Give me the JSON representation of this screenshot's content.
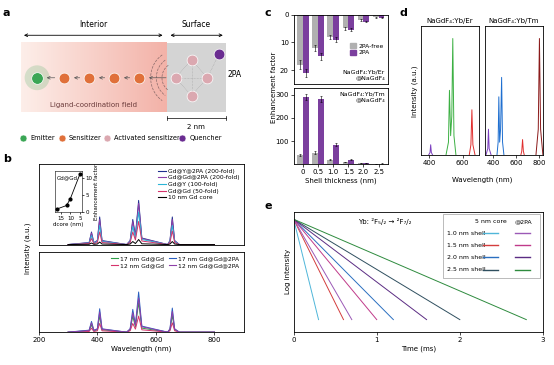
{
  "panel_labels": [
    "a",
    "b",
    "c",
    "d",
    "e"
  ],
  "diagram": {
    "regions": [
      "Interior",
      "Surface"
    ],
    "field_label": "Ligand-coordination field",
    "distance_label": "2 nm",
    "ligand_label": "2PA",
    "legend": [
      {
        "name": "Emitter",
        "color": "#3aa655"
      },
      {
        "name": "Sensitizer",
        "color": "#e0703a"
      },
      {
        "name": "Activated sensitizer",
        "color": "#dba8b0"
      },
      {
        "name": "Quencher",
        "color": "#6a2c91"
      }
    ]
  },
  "chart_data": [
    {
      "type": "line",
      "x": [
        300,
        372,
        380,
        388,
        400,
        408,
        416,
        500,
        512,
        521,
        530,
        541,
        552,
        640,
        648,
        656,
        664,
        680,
        800
      ],
      "xlim": [
        200,
        900
      ],
      "ylim": [
        0,
        16
      ],
      "tick_labels": false,
      "legend": "upper right",
      "series": [
        {
          "name": "Gd@Y@2PA (200-fold)",
          "color": "#1f2f8f",
          "values": [
            0,
            0.4,
            2.5,
            0.4,
            0.8,
            5.5,
            0.8,
            0,
            0.8,
            5.0,
            1.8,
            8.8,
            1.3,
            0,
            0.8,
            5.5,
            0.8,
            0,
            0
          ]
        },
        {
          "name": "Gd@Gd@2PA (200-fold)",
          "color": "#8e3fa8",
          "values": [
            0,
            0.35,
            2.3,
            0.35,
            0.7,
            5.0,
            0.7,
            0,
            0.7,
            4.6,
            1.6,
            8.2,
            1.2,
            0,
            0.7,
            5.0,
            0.7,
            0,
            0
          ]
        },
        {
          "name": "Gd@Y (100-fold)",
          "color": "#2bb5d6",
          "values": [
            0,
            0.3,
            1.8,
            0.3,
            0.6,
            3.8,
            0.6,
            0,
            0.5,
            3.6,
            1.2,
            6.5,
            1.0,
            0,
            0.6,
            3.8,
            0.6,
            0,
            0
          ]
        },
        {
          "name": "Gd@Gd (50-fold)",
          "color": "#d6336c",
          "values": [
            0,
            0.2,
            1.2,
            0.2,
            0.4,
            2.5,
            0.4,
            0,
            0.4,
            2.5,
            0.9,
            4.6,
            0.7,
            0,
            0.4,
            2.7,
            0.4,
            0,
            0
          ]
        },
        {
          "name": "10 nm Gd core",
          "color": "#000000",
          "values": [
            0,
            0.05,
            0.3,
            0.05,
            0.1,
            0.5,
            0.1,
            0,
            0.1,
            0.6,
            0.2,
            1.0,
            0.15,
            0,
            0.1,
            0.6,
            0.1,
            0,
            0
          ]
        }
      ]
    },
    {
      "type": "line",
      "title": "Gd@Gd",
      "x": [
        17,
        12,
        10,
        5
      ],
      "values": [
        1,
        2,
        4,
        11
      ],
      "color": "#000000",
      "marker": "o",
      "x_label": "dcore (nm)",
      "y_label": "Enhancement factor",
      "xlim": [
        18,
        4
      ],
      "xticks": [
        15,
        10,
        5
      ],
      "ylim": [
        0,
        12
      ],
      "yticks": [
        0,
        5,
        10
      ]
    },
    {
      "type": "line",
      "x": [
        300,
        372,
        380,
        388,
        400,
        408,
        416,
        500,
        512,
        521,
        530,
        541,
        552,
        640,
        648,
        656,
        664,
        680,
        800
      ],
      "xlim": [
        200,
        900
      ],
      "xticks": [
        200,
        400,
        600,
        800
      ],
      "ylim": [
        0,
        12
      ],
      "tick_labels": "x",
      "legend": "upper right",
      "x_label": "Wavelength (nm)",
      "y_label": "Intensity (a.u.)",
      "series": [
        {
          "name": "17 nm Gd@Gd",
          "color": "#2e9e48",
          "values": [
            0,
            0.2,
            1.1,
            0.2,
            0.35,
            2.4,
            0.35,
            0,
            0.35,
            2.4,
            0.8,
            4.4,
            0.6,
            0,
            0.35,
            2.5,
            0.35,
            0,
            0
          ]
        },
        {
          "name": "12 nm Gd@Gd",
          "color": "#d6336c",
          "values": [
            0,
            0.1,
            0.6,
            0.1,
            0.2,
            1.3,
            0.2,
            0,
            0.2,
            1.3,
            0.45,
            2.4,
            0.35,
            0,
            0.2,
            1.4,
            0.2,
            0,
            0
          ]
        },
        {
          "name": "17 nm Gd@Gd@2PA",
          "color": "#2a5fc0",
          "values": [
            0,
            0.3,
            1.6,
            0.3,
            0.5,
            3.5,
            0.5,
            0,
            0.5,
            3.4,
            1.1,
            6.0,
            0.9,
            0,
            0.5,
            3.6,
            0.5,
            0,
            0
          ]
        },
        {
          "name": "12 nm Gd@Gd@2PA",
          "color": "#8e3fa8",
          "values": [
            0,
            0.25,
            1.4,
            0.25,
            0.45,
            3.0,
            0.45,
            0,
            0.45,
            2.9,
            1.0,
            5.1,
            0.8,
            0,
            0.45,
            3.1,
            0.45,
            0,
            0
          ]
        }
      ]
    },
    {
      "type": "bar",
      "categories": [
        "0",
        "0.5",
        "1.0",
        "1.5",
        "2.0",
        "2.5"
      ],
      "ylim": [
        25,
        0
      ],
      "yticks": [
        0,
        10,
        20
      ],
      "tick_labels": "y",
      "legend": "center right",
      "annotation": "NaGdF₄:Yb/Er\n@NaGdF₄",
      "series": [
        {
          "name": "2PA-free",
          "color": "#b0b0b0",
          "values": [
            18,
            12,
            8,
            5,
            2,
            1
          ],
          "errors": [
            1.5,
            1,
            0.8,
            0.5,
            0.3,
            0.2
          ]
        },
        {
          "name": "2PA",
          "color": "#7b3f9e",
          "values": [
            21,
            15,
            9,
            5.5,
            2.5,
            1.2
          ],
          "errors": [
            1.5,
            1.2,
            0.8,
            0.5,
            0.3,
            0.2
          ]
        }
      ]
    },
    {
      "type": "bar",
      "categories": [
        "0",
        "0.5",
        "1.0",
        "1.5",
        "2.0",
        "2.5"
      ],
      "ylim": [
        0,
        330
      ],
      "yticks": [
        100,
        200,
        300
      ],
      "x_label": "Shell thickness (nm)",
      "y_label": "Enhancement factor",
      "annotation": "NaGdF₄:Yb/Tm\n@NaGdF₄",
      "series": [
        {
          "name": "2PA-free",
          "color": "#b0b0b0",
          "values": [
            40,
            50,
            20,
            10,
            5,
            2
          ],
          "errors": [
            4,
            5,
            2,
            1,
            0.5,
            0.3
          ]
        },
        {
          "name": "2PA",
          "color": "#7b3f9e",
          "values": [
            290,
            280,
            85,
            20,
            6,
            3
          ],
          "errors": [
            12,
            12,
            6,
            2,
            1,
            0.5
          ]
        }
      ]
    },
    {
      "type": "line",
      "title": "NaGdF₄:Yb/Er",
      "xlim": [
        350,
        700
      ],
      "xticks": [
        400,
        600
      ],
      "ylim": [
        0,
        10
      ],
      "tick_labels": "x",
      "x_label": "Wavelength (nm)",
      "y_label": "Intensity (a.u.)",
      "series": [
        {
          "color": "#7b3fbf",
          "x": [
            395,
            404,
            408,
            412,
            420
          ],
          "values": [
            0,
            0.2,
            0.8,
            0.2,
            0
          ]
        },
        {
          "color": "#3cb043",
          "x": [
            500,
            515,
            521,
            528,
            535,
            541,
            548,
            560
          ],
          "values": [
            0,
            1,
            5,
            1.5,
            3,
            9,
            1.5,
            0
          ]
        },
        {
          "color": "#e03030",
          "x": [
            640,
            650,
            656,
            662,
            675
          ],
          "values": [
            0,
            0.8,
            3.5,
            0.8,
            0
          ]
        }
      ]
    },
    {
      "type": "line",
      "title": "NaGdF₄:Yb/Tm",
      "xlim": [
        330,
        830
      ],
      "xticks": [
        400,
        600,
        800
      ],
      "ylim": [
        0,
        10
      ],
      "tick_labels": "x",
      "series": [
        {
          "color": "#7b3fbf",
          "x": [
            340,
            356,
            362,
            368,
            385
          ],
          "values": [
            0,
            0.5,
            2.0,
            0.5,
            0
          ]
        },
        {
          "color": "#1f6fd0",
          "x": [
            435,
            445,
            451,
            458,
            466,
            475,
            483,
            495
          ],
          "values": [
            0,
            1,
            4.5,
            1,
            2,
            6,
            1,
            0
          ]
        },
        {
          "color": "#e03030",
          "x": [
            640,
            648,
            655,
            662,
            670
          ],
          "values": [
            0,
            0.3,
            1.2,
            0.3,
            0
          ]
        },
        {
          "color": "#8b1a1a",
          "x": [
            770,
            790,
            800,
            810,
            830
          ],
          "values": [
            0,
            2,
            9,
            2,
            0
          ]
        }
      ]
    },
    {
      "type": "line",
      "xlim": [
        0,
        3
      ],
      "xticks": [
        0,
        1,
        2,
        3
      ],
      "ylim": [
        -4.5,
        0.3
      ],
      "tick_labels": "x",
      "x_label": "Time (ms)",
      "y_label": "Log intensity",
      "annotation": "Yb: ²F₅/₂ → ²F₇/₂",
      "legend": "upper right",
      "legend_columns": [
        "5 nm core",
        "@2PA"
      ],
      "series": [
        {
          "name": "1.0 nm shell",
          "group": "5 nm core",
          "color": "#4fb6d9",
          "x": [
            0,
            0.15,
            0.3
          ],
          "values": [
            0,
            -2,
            -4
          ]
        },
        {
          "name": "1.5 nm shell",
          "group": "5 nm core",
          "color": "#d43d3d",
          "x": [
            0,
            0.3,
            0.6
          ],
          "values": [
            0,
            -2,
            -4
          ]
        },
        {
          "name": "2.0 nm shell",
          "group": "5 nm core",
          "color": "#2a6fc0",
          "x": [
            0,
            0.6,
            1.2
          ],
          "values": [
            0,
            -2,
            -4
          ]
        },
        {
          "name": "2.5 nm shell",
          "group": "5 nm core",
          "color": "#2f4f5f",
          "x": [
            0,
            1.0,
            2.0
          ],
          "values": [
            0,
            -2,
            -4
          ]
        },
        {
          "name": "1.0 nm shell",
          "group": "@2PA",
          "color": "#9b59b6",
          "x": [
            0,
            0.35,
            0.7
          ],
          "values": [
            0,
            -2,
            -4
          ]
        },
        {
          "name": "1.5 nm shell",
          "group": "@2PA",
          "color": "#c03a8a",
          "x": [
            0,
            0.5,
            1.0
          ],
          "values": [
            0,
            -2,
            -4
          ]
        },
        {
          "name": "2.0 nm shell",
          "group": "@2PA",
          "color": "#5b2c83",
          "x": [
            0,
            0.8,
            1.6
          ],
          "values": [
            0,
            -2,
            -4
          ]
        },
        {
          "name": "2.5 nm shell",
          "group": "@2PA",
          "color": "#2e8b3e",
          "x": [
            0,
            1.4,
            2.8
          ],
          "values": [
            0,
            -2,
            -4
          ]
        }
      ]
    }
  ]
}
